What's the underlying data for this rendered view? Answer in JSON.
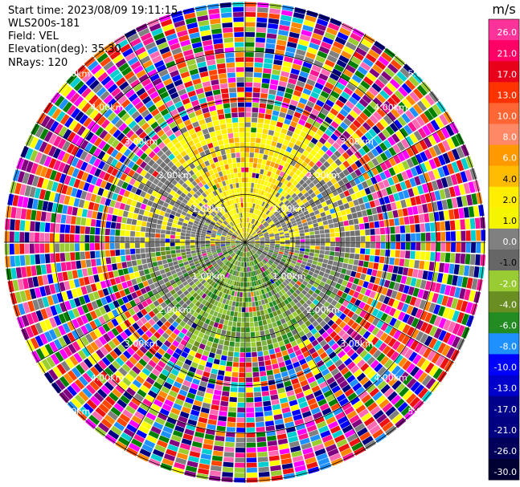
{
  "header": {
    "start_time": "Start time: 2023/08/09 19:11:15",
    "instrument": "WLS200s-181",
    "field": "Field: VEL",
    "elevation": "Elevation(deg): 35.30",
    "nrays": "NRays: 120"
  },
  "colorbar": {
    "unit": "m/s",
    "ticks": [
      "26.0",
      "21.0",
      "17.0",
      "13.0",
      "10.0",
      "8.0",
      "6.0",
      "4.0",
      "2.0",
      "1.0",
      "0.0",
      "-1.0",
      "-2.0",
      "-4.0",
      "-6.0",
      "-8.0",
      "-10.0",
      "-13.0",
      "-17.0",
      "-21.0",
      "-26.0",
      "-30.0"
    ],
    "colors": [
      "#ff3399",
      "#ff0066",
      "#e8001a",
      "#ff3300",
      "#ff6633",
      "#ff8866",
      "#ff9900",
      "#ffbb00",
      "#ffee00",
      "#f5f500",
      "#808080",
      "#666666",
      "#99cc33",
      "#6b8e23",
      "#228b22",
      "#1e90ff",
      "#0000ff",
      "#0000cd",
      "#00008b",
      "#000080",
      "#00005a",
      "#000033"
    ]
  },
  "range_rings": {
    "labels": [
      "1.00km",
      "2.00km",
      "3.00km",
      "4.00km",
      "5.00km"
    ]
  },
  "palette": {
    "noise": [
      "#ff1493",
      "#ff69b4",
      "#ff00ff",
      "#ee1111",
      "#ff8800",
      "#ffff00",
      "#0000ff",
      "#1e90ff",
      "#000080",
      "#008000",
      "#9acd32",
      "#808080",
      "#800080",
      "#00ced1",
      "#ff4500"
    ],
    "positive_near": [
      "#ffff00",
      "#ffff00",
      "#ffee00",
      "#f5f500",
      "#ffd700"
    ],
    "warm_patch": [
      "#ffa500",
      "#ff8c00",
      "#ffbb00"
    ],
    "neutral": [
      "#808080",
      "#707070"
    ],
    "negative_near": [
      "#9acd32",
      "#6b8e23",
      "#7cb342",
      "#228b22"
    ]
  }
}
